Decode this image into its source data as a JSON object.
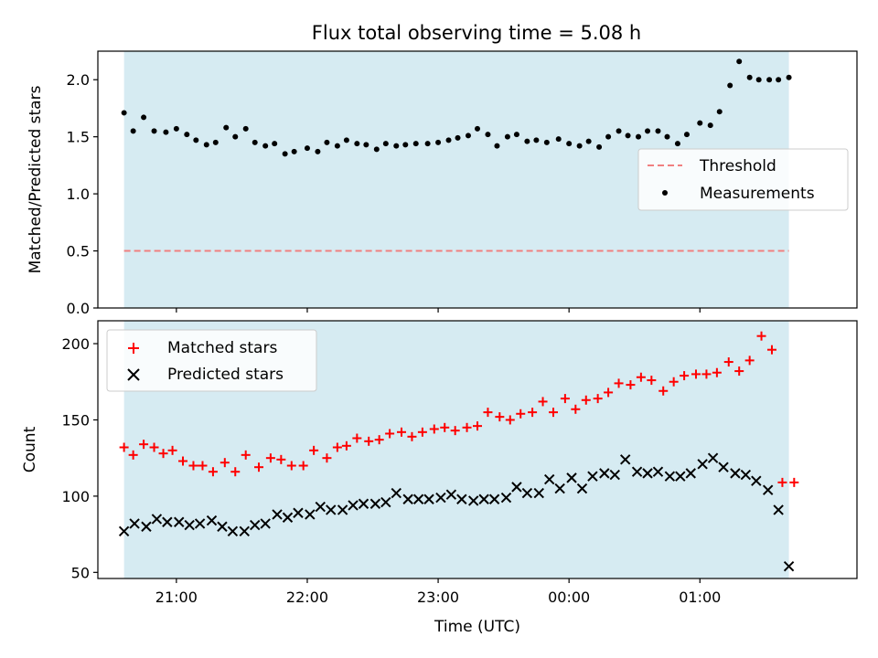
{
  "figure_title": "Flux total observing time = 5.08 h",
  "chart_data": [
    {
      "type": "scatter",
      "ylabel": "Matched/Predicted stars",
      "ylim": [
        0,
        2.25
      ],
      "yticks": [
        0.0,
        0.5,
        1.0,
        1.5,
        2.0
      ],
      "ytick_labels": [
        "0.0",
        "0.5",
        "1.0",
        "1.5",
        "2.0"
      ],
      "xticks_hours": [
        21,
        22,
        23,
        24,
        25
      ],
      "xlim_hours": [
        20.4,
        26.2
      ],
      "shaded_span_hours": [
        20.6,
        25.68
      ],
      "shade_color": "#add8e6",
      "legend_position": "center-right",
      "threshold": {
        "name": "Threshold",
        "value": 0.5,
        "color": "#f08080",
        "style": "dashed"
      },
      "series": [
        {
          "name": "Measurements",
          "marker": "dot",
          "color": "#000000",
          "x": [
            20.6,
            20.67,
            20.75,
            20.83,
            20.92,
            21.0,
            21.08,
            21.15,
            21.23,
            21.3,
            21.38,
            21.45,
            21.53,
            21.6,
            21.68,
            21.75,
            21.83,
            21.9,
            22.0,
            22.08,
            22.15,
            22.23,
            22.3,
            22.38,
            22.45,
            22.53,
            22.6,
            22.68,
            22.75,
            22.83,
            22.92,
            23.0,
            23.08,
            23.15,
            23.23,
            23.3,
            23.38,
            23.45,
            23.53,
            23.6,
            23.68,
            23.75,
            23.83,
            23.92,
            24.0,
            24.08,
            24.15,
            24.23,
            24.3,
            24.38,
            24.45,
            24.53,
            24.6,
            24.68,
            24.75,
            24.83,
            24.9,
            25.0,
            25.08,
            25.15,
            25.23,
            25.3,
            25.38,
            25.45,
            25.53,
            25.6,
            25.68
          ],
          "y": [
            1.71,
            1.55,
            1.67,
            1.55,
            1.54,
            1.57,
            1.52,
            1.47,
            1.43,
            1.45,
            1.58,
            1.5,
            1.57,
            1.45,
            1.42,
            1.44,
            1.35,
            1.37,
            1.4,
            1.37,
            1.45,
            1.42,
            1.47,
            1.44,
            1.43,
            1.39,
            1.44,
            1.42,
            1.43,
            1.44,
            1.44,
            1.45,
            1.47,
            1.49,
            1.51,
            1.57,
            1.52,
            1.42,
            1.5,
            1.52,
            1.46,
            1.47,
            1.45,
            1.48,
            1.44,
            1.42,
            1.46,
            1.41,
            1.5,
            1.55,
            1.51,
            1.5,
            1.55,
            1.55,
            1.5,
            1.44,
            1.52,
            1.62,
            1.6,
            1.72,
            1.95,
            2.16,
            2.02,
            2.0,
            2.0,
            2.0,
            2.02
          ]
        }
      ]
    },
    {
      "type": "scatter",
      "xlabel": "Time (UTC)",
      "ylabel": "Count",
      "ylim": [
        46,
        215
      ],
      "yticks": [
        50,
        100,
        150,
        200
      ],
      "ytick_labels": [
        "50",
        "100",
        "150",
        "200"
      ],
      "xticks_hours": [
        21,
        22,
        23,
        24,
        25
      ],
      "xtick_labels": [
        "21:00",
        "22:00",
        "23:00",
        "00:00",
        "01:00"
      ],
      "xlim_hours": [
        20.4,
        26.2
      ],
      "shaded_span_hours": [
        20.6,
        25.68
      ],
      "shade_color": "#add8e6",
      "legend_position": "top-left",
      "series": [
        {
          "name": "Matched stars",
          "marker": "plus",
          "color": "#ff0000",
          "x": [
            20.6,
            20.67,
            20.75,
            20.83,
            20.9,
            20.97,
            21.05,
            21.13,
            21.2,
            21.28,
            21.37,
            21.45,
            21.53,
            21.63,
            21.72,
            21.8,
            21.88,
            21.97,
            22.05,
            22.15,
            22.23,
            22.3,
            22.38,
            22.47,
            22.55,
            22.63,
            22.72,
            22.8,
            22.88,
            22.97,
            23.05,
            23.13,
            23.22,
            23.3,
            23.38,
            23.47,
            23.55,
            23.63,
            23.72,
            23.8,
            23.88,
            23.97,
            24.05,
            24.13,
            24.22,
            24.3,
            24.38,
            24.47,
            24.55,
            24.63,
            24.72,
            24.8,
            24.88,
            24.97,
            25.05,
            25.13,
            25.22,
            25.3,
            25.38,
            25.47,
            25.55,
            25.63,
            25.72
          ],
          "y": [
            132,
            127,
            134,
            132,
            128,
            130,
            123,
            120,
            120,
            116,
            122,
            116,
            127,
            119,
            125,
            124,
            120,
            120,
            130,
            125,
            132,
            133,
            138,
            136,
            137,
            141,
            142,
            139,
            142,
            144,
            145,
            143,
            145,
            146,
            155,
            152,
            150,
            154,
            155,
            162,
            155,
            164,
            157,
            163,
            164,
            168,
            174,
            173,
            178,
            176,
            169,
            175,
            179,
            180,
            180,
            181,
            188,
            182,
            189,
            205,
            196,
            109,
            109
          ]
        },
        {
          "name": "Predicted stars",
          "marker": "x",
          "color": "#000000",
          "x": [
            20.6,
            20.68,
            20.77,
            20.85,
            20.93,
            21.02,
            21.1,
            21.18,
            21.27,
            21.35,
            21.43,
            21.52,
            21.6,
            21.68,
            21.77,
            21.85,
            21.93,
            22.02,
            22.1,
            22.18,
            22.27,
            22.35,
            22.43,
            22.52,
            22.6,
            22.68,
            22.77,
            22.85,
            22.93,
            23.02,
            23.1,
            23.18,
            23.27,
            23.35,
            23.43,
            23.52,
            23.6,
            23.68,
            23.77,
            23.85,
            23.93,
            24.02,
            24.1,
            24.18,
            24.27,
            24.35,
            24.43,
            24.52,
            24.6,
            24.68,
            24.77,
            24.85,
            24.93,
            25.02,
            25.1,
            25.18,
            25.27,
            25.35,
            25.43,
            25.52,
            25.6,
            25.68
          ],
          "y": [
            77,
            82,
            80,
            85,
            83,
            83,
            81,
            82,
            84,
            80,
            77,
            77,
            81,
            82,
            88,
            86,
            89,
            88,
            93,
            91,
            91,
            94,
            95,
            95,
            96,
            102,
            98,
            98,
            98,
            99,
            101,
            98,
            97,
            98,
            98,
            99,
            106,
            102,
            102,
            111,
            105,
            112,
            105,
            113,
            115,
            114,
            124,
            116,
            115,
            116,
            113,
            113,
            115,
            121,
            125,
            119,
            115,
            114,
            110,
            104,
            91,
            54
          ]
        }
      ]
    }
  ]
}
